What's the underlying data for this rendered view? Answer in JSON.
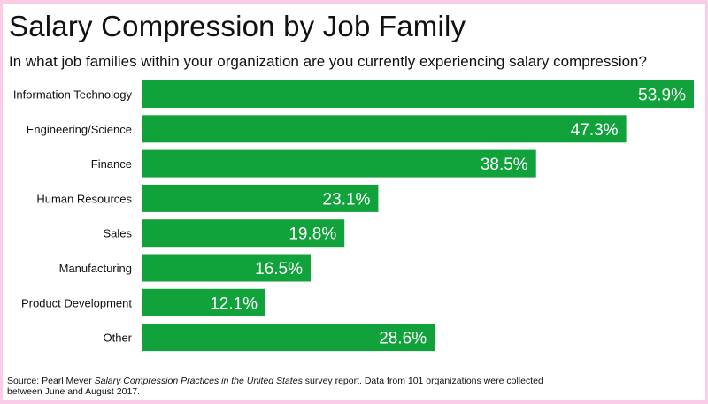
{
  "title": "Salary Compression by Job Family",
  "subtitle": "In what job families within your organization are you currently experiencing salary compression?",
  "source": {
    "prefix": "Source: Pearl Meyer ",
    "italic": "Salary Compression Practices in the United States",
    "suffix": " survey report. Data from 101 organizations were collected",
    "line2": "between June and August 2017."
  },
  "colors": {
    "bar": "#12a23c",
    "label_text": "#ffffff",
    "background": "#ffffff",
    "border": "#f9cde6"
  },
  "chart_data": {
    "type": "bar",
    "orientation": "horizontal",
    "categories": [
      "Information Technology",
      "Engineering/Science",
      "Finance",
      "Human Resources",
      "Sales",
      "Manufacturing",
      "Product Development",
      "Other"
    ],
    "values": [
      53.9,
      47.3,
      38.5,
      23.1,
      19.8,
      16.5,
      12.1,
      28.6
    ],
    "value_labels": [
      "53.9%",
      "47.3%",
      "38.5%",
      "23.1%",
      "19.8%",
      "16.5%",
      "12.1%",
      "28.6%"
    ],
    "xlim": [
      0,
      53.9
    ],
    "grid": false,
    "legend": "none"
  }
}
